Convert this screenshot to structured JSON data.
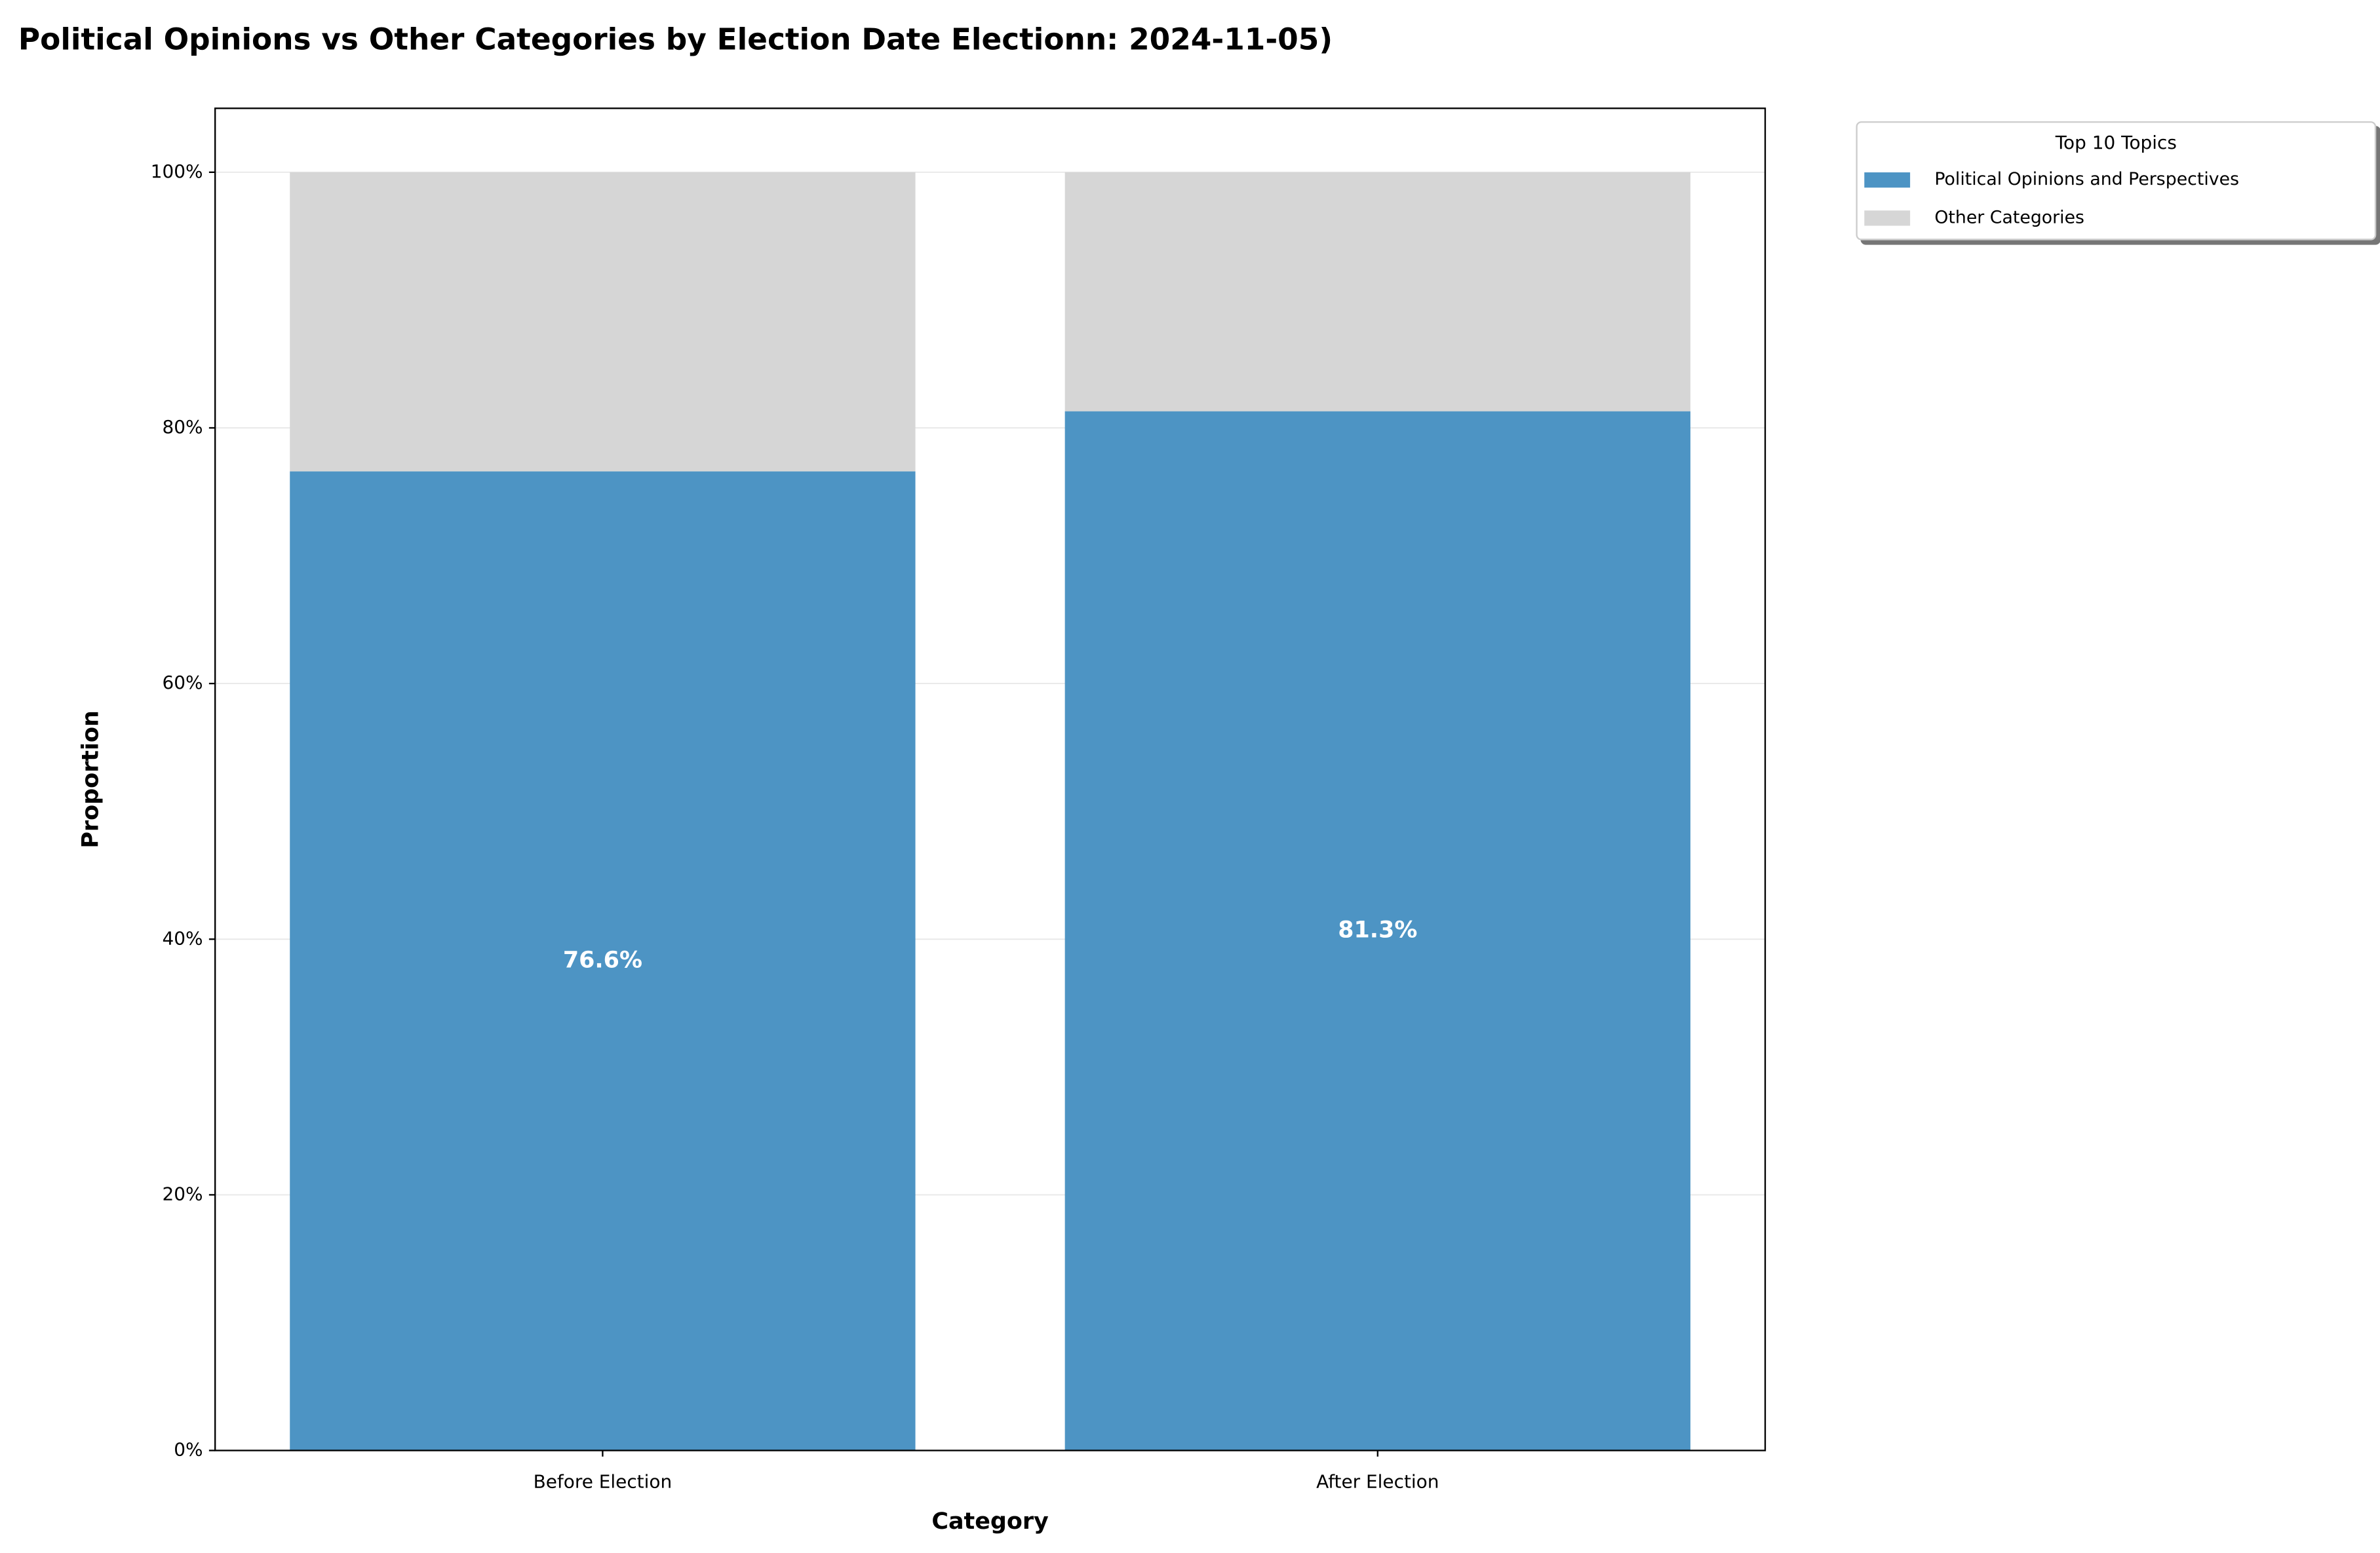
{
  "chart_data": {
    "type": "stacked_bar",
    "title": "Political Opinions vs Other Categories by Election Date Electionn: 2024-11-05)",
    "x_label": "Category",
    "y_label": "Proportion",
    "categories": [
      "Before Election",
      "After Election"
    ],
    "series": [
      {
        "name": "Political Opinions and Perspectives",
        "color": "#4d94c4",
        "values": [
          76.6,
          81.3
        ],
        "value_labels": [
          "76.6%",
          "81.3%"
        ]
      },
      {
        "name": "Other Categories",
        "color": "#d6d6d6",
        "values": [
          23.4,
          18.7
        ]
      }
    ],
    "ylim": [
      0,
      105
    ],
    "yticks": [
      {
        "value": 0,
        "label": "0%"
      },
      {
        "value": 20,
        "label": "20%"
      },
      {
        "value": 40,
        "label": "40%"
      },
      {
        "value": 60,
        "label": "60%"
      },
      {
        "value": 80,
        "label": "80%"
      },
      {
        "value": 100,
        "label": "100%"
      }
    ],
    "grid": true,
    "legend_title": "Top 10 Topics",
    "legend_position": "outside-upper-right"
  }
}
